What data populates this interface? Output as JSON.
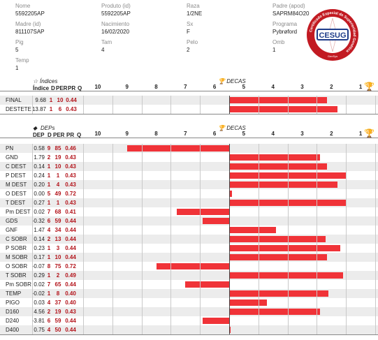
{
  "info": {
    "fields": [
      {
        "label": "Nome",
        "value": "5592205AP"
      },
      {
        "label": "Produto (id)",
        "value": "5592205AP"
      },
      {
        "label": "Raza",
        "value": "1/2NE"
      },
      {
        "label": "Padre (apod)",
        "value": "SAPRM84O20"
      },
      {
        "label": "Madre (id)",
        "value": "811107SAP"
      },
      {
        "label": "Nacimiento",
        "value": "16/02/2020"
      },
      {
        "label": "Sx",
        "value": "F"
      },
      {
        "label": "Programa",
        "value": "Pybrøford"
      },
      {
        "label": "Pig",
        "value": "5"
      },
      {
        "label": "Tam",
        "value": "4"
      },
      {
        "label": "Pelo",
        "value": "2"
      },
      {
        "label": "Omb",
        "value": "1"
      },
      {
        "label": "Temp",
        "value": "1"
      }
    ]
  },
  "logo": {
    "text": "CESUG",
    "ring_text": "Certificado Especial de Superioridad Genética",
    "sub_text": "GenSys"
  },
  "indices": {
    "title": "Índices",
    "columns": {
      "name": "Índice",
      "d": "D",
      "per": "PER",
      "pr": "PR",
      "q": "Q"
    },
    "decas_title": "DECAS",
    "decas": [
      "10",
      "9",
      "8",
      "7",
      "6",
      "5",
      "4",
      "3",
      "2",
      "1"
    ],
    "rows": [
      {
        "name": "FINAL",
        "value": "9.68",
        "d": "1",
        "per": "10",
        "pr": "0.44",
        "bar_start": 5,
        "bar_end": 1.65
      },
      {
        "name": "DESTETE",
        "value": "13.87",
        "d": "1",
        "per": "6",
        "pr": "0.43",
        "bar_start": 5,
        "bar_end": 1.3
      }
    ]
  },
  "deps": {
    "title": "DEPs",
    "columns": {
      "name": "DEP",
      "d": "D",
      "per": "PER",
      "pr": "PR",
      "q": "Q"
    },
    "decas_title": "DECAS",
    "decas": [
      "10",
      "9",
      "8",
      "7",
      "6",
      "5",
      "4",
      "3",
      "2",
      "1"
    ],
    "rows": [
      {
        "name": "PN",
        "value": "0.58",
        "d": "9",
        "per": "85",
        "pr": "0.46",
        "bar_start": 5,
        "bar_end": 8.5
      },
      {
        "name": "GND",
        "value": "1.79",
        "d": "2",
        "per": "19",
        "pr": "0.43",
        "bar_start": 5,
        "bar_end": 1.9
      },
      {
        "name": "C DEST",
        "value": "0.14",
        "d": "1",
        "per": "10",
        "pr": "0.43",
        "bar_start": 5,
        "bar_end": 1.65
      },
      {
        "name": "P DEST",
        "value": "0.24",
        "d": "1",
        "per": "1",
        "pr": "0.43",
        "bar_start": 5,
        "bar_end": 1.0
      },
      {
        "name": "M DEST",
        "value": "0.20",
        "d": "1",
        "per": "4",
        "pr": "0.43",
        "bar_start": 5,
        "bar_end": 1.3
      },
      {
        "name": "O DEST",
        "value": "0.00",
        "d": "5",
        "per": "49",
        "pr": "0.72",
        "bar_start": 5,
        "bar_end": 4.9
      },
      {
        "name": "T DEST",
        "value": "0.27",
        "d": "1",
        "per": "1",
        "pr": "0.43",
        "bar_start": 5,
        "bar_end": 1.0
      },
      {
        "name": "Pm DEST",
        "value": "0.02",
        "d": "7",
        "per": "68",
        "pr": "0.41",
        "bar_start": 5,
        "bar_end": 6.8
      },
      {
        "name": "GDS",
        "value": "-0.32",
        "d": "6",
        "per": "59",
        "pr": "0.44",
        "bar_start": 5,
        "bar_end": 5.9
      },
      {
        "name": "GNF",
        "value": "1.47",
        "d": "4",
        "per": "34",
        "pr": "0.44",
        "bar_start": 5,
        "bar_end": 3.4
      },
      {
        "name": "C SOBR",
        "value": "0.14",
        "d": "2",
        "per": "13",
        "pr": "0.44",
        "bar_start": 5,
        "bar_end": 1.7
      },
      {
        "name": "P SOBR",
        "value": "0.23",
        "d": "1",
        "per": "3",
        "pr": "0.44",
        "bar_start": 5,
        "bar_end": 1.2
      },
      {
        "name": "M SOBR",
        "value": "0.17",
        "d": "1",
        "per": "10",
        "pr": "0.44",
        "bar_start": 5,
        "bar_end": 1.65
      },
      {
        "name": "O SOBR",
        "value": "-0.07",
        "d": "8",
        "per": "75",
        "pr": "0.72",
        "bar_start": 5,
        "bar_end": 7.5
      },
      {
        "name": "T SOBR",
        "value": "0.29",
        "d": "1",
        "per": "2",
        "pr": "0.49",
        "bar_start": 5,
        "bar_end": 1.1
      },
      {
        "name": "Pm SOBR",
        "value": "0.02",
        "d": "7",
        "per": "65",
        "pr": "0.44",
        "bar_start": 5,
        "bar_end": 6.5
      },
      {
        "name": "TEMP",
        "value": "-0.02",
        "d": "1",
        "per": "8",
        "pr": "0.40",
        "bar_start": 5,
        "bar_end": 1.6
      },
      {
        "name": "PIGO",
        "value": "0.03",
        "d": "4",
        "per": "37",
        "pr": "0.40",
        "bar_start": 5,
        "bar_end": 3.7
      },
      {
        "name": "D160",
        "value": "4.56",
        "d": "2",
        "per": "19",
        "pr": "0.43",
        "bar_start": 5,
        "bar_end": 1.9
      },
      {
        "name": "D240",
        "value": "-3.81",
        "d": "6",
        "per": "59",
        "pr": "0.44",
        "bar_start": 5,
        "bar_end": 5.9
      },
      {
        "name": "D400",
        "value": "0.75",
        "d": "4",
        "per": "50",
        "pr": "0.44",
        "bar_start": 5,
        "bar_end": 5.0
      }
    ]
  },
  "colors": {
    "bar": "#f03338",
    "value_red": "#b3131a",
    "alt_row": "#ececec",
    "cup": "#e0b000"
  }
}
